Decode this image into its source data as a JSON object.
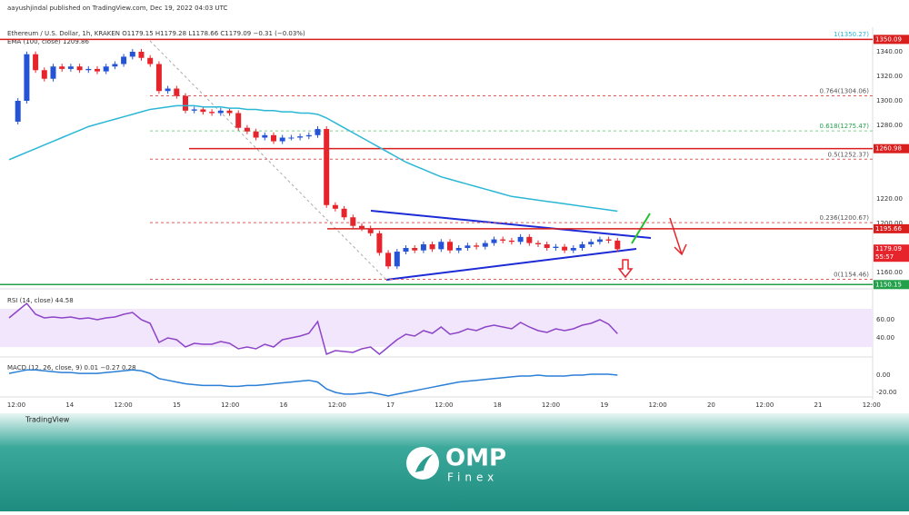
{
  "header": {
    "publisher": "aayushjindal published on TradingView.com, Dec 19, 2022 04:03 UTC"
  },
  "chart": {
    "type": "candlestick",
    "symbol": "Ethereum / U.S. Dollar, 1h, KRAKEN  O1179.15 H1179.28 L1178.66 C1179.09 −0.31 (−0.03%)",
    "ema_label": "EMA (100, close)  1209.86",
    "rsi_label": "RSI (14, close)  44.58",
    "macd_label": "MACD (12, 26, close, 9)  0.01  −0.27  0.28",
    "up_color": "#2453d6",
    "down_color": "#e6242b",
    "ema_color": "#2ab7d6",
    "rsi_color": "#8e44c9",
    "macd_color": "#2a7fd6",
    "closes": [
      1283,
      1300,
      1338,
      1325,
      1318,
      1328,
      1326,
      1328,
      1325,
      1326,
      1324,
      1328,
      1330,
      1336,
      1340,
      1335,
      1330,
      1308,
      1310,
      1304,
      1292,
      1293,
      1291,
      1290,
      1292,
      1290,
      1278,
      1275,
      1270,
      1272,
      1267,
      1270,
      1270,
      1271,
      1272,
      1277,
      1215,
      1212,
      1205,
      1198,
      1196,
      1192,
      1176,
      1165,
      1177,
      1180,
      1178,
      1183,
      1179,
      1185,
      1178,
      1180,
      1182,
      1181,
      1184,
      1187,
      1186,
      1185,
      1189,
      1184,
      1183,
      1180,
      1181,
      1178,
      1180,
      1183,
      1185,
      1187,
      1186,
      1179
    ],
    "ema": [
      1252,
      1255,
      1258,
      1261,
      1264,
      1267,
      1270,
      1273,
      1276,
      1279,
      1281,
      1283,
      1285,
      1287,
      1289,
      1291,
      1293,
      1294,
      1295,
      1296,
      1296,
      1296,
      1295,
      1295,
      1295,
      1294,
      1294,
      1293,
      1293,
      1292,
      1292,
      1291,
      1291,
      1290,
      1290,
      1289,
      1286,
      1282,
      1278,
      1274,
      1270,
      1266,
      1262,
      1258,
      1254,
      1250,
      1247,
      1244,
      1241,
      1238,
      1236,
      1234,
      1232,
      1230,
      1228,
      1226,
      1224,
      1222,
      1221,
      1220,
      1219,
      1218,
      1217,
      1216,
      1215,
      1214,
      1213,
      1212,
      1211,
      1210
    ],
    "rsi": [
      62,
      70,
      78,
      66,
      62,
      63,
      62,
      63,
      61,
      62,
      60,
      62,
      63,
      66,
      68,
      60,
      56,
      35,
      40,
      38,
      30,
      34,
      33,
      33,
      36,
      34,
      28,
      30,
      28,
      33,
      30,
      38,
      40,
      42,
      45,
      58,
      22,
      26,
      25,
      24,
      28,
      30,
      22,
      30,
      38,
      44,
      42,
      48,
      45,
      52,
      44,
      46,
      50,
      48,
      52,
      54,
      52,
      50,
      57,
      52,
      48,
      46,
      50,
      48,
      50,
      54,
      56,
      60,
      55,
      44.58
    ],
    "macd": [
      2,
      4,
      6,
      6,
      5,
      4,
      3,
      3,
      2,
      2,
      2,
      3,
      4,
      5,
      6,
      5,
      2,
      -4,
      -6,
      -8,
      -10,
      -11,
      -12,
      -12,
      -12,
      -13,
      -13,
      -12,
      -12,
      -11,
      -10,
      -9,
      -8,
      -7,
      -6,
      -8,
      -16,
      -20,
      -22,
      -22,
      -21,
      -20,
      -22,
      -24,
      -22,
      -20,
      -18,
      -16,
      -14,
      -12,
      -10,
      -8,
      -7,
      -6,
      -5,
      -4,
      -3,
      -2,
      -1,
      -1,
      0,
      -1,
      -1,
      -1,
      0,
      0,
      1,
      1,
      1,
      0
    ],
    "price_ticks": [
      {
        "value": 1340,
        "label": "1340.00"
      },
      {
        "value": 1320,
        "label": "1320.00"
      },
      {
        "value": 1300,
        "label": "1300.00"
      },
      {
        "value": 1280,
        "label": "1280.00"
      },
      {
        "value": 1220,
        "label": "1220.00"
      },
      {
        "value": 1200,
        "label": "1200.00"
      },
      {
        "value": 1160,
        "label": "1160.00"
      }
    ],
    "rsi_ticks": [
      {
        "value": 60,
        "label": "60.00"
      },
      {
        "value": 40,
        "label": "40.00"
      }
    ],
    "macd_ticks": [
      {
        "value": 0,
        "label": "0.00"
      },
      {
        "value": -20,
        "label": "-20.00"
      }
    ],
    "time_ticks": [
      "12:00",
      "14",
      "12:00",
      "15",
      "12:00",
      "16",
      "12:00",
      "17",
      "12:00",
      "18",
      "12:00",
      "19",
      "12:00",
      "20",
      "12:00",
      "21",
      "12:00"
    ],
    "fib_levels": [
      {
        "value": 1350.27,
        "label": "1(1350.27)"
      },
      {
        "value": 1304.06,
        "label": "0.764(1304.06)"
      },
      {
        "value": 1275.47,
        "label": "0.618(1275.47)"
      },
      {
        "value": 1252.37,
        "label": "0.5(1252.37)"
      },
      {
        "value": 1200.67,
        "label": "0.236(1200.67)"
      },
      {
        "value": 1154.46,
        "label": "0(1154.46)"
      }
    ],
    "levels": [
      {
        "value": 1350.09,
        "label": "1350.09"
      },
      {
        "value": 1260.98,
        "label": "1260.98"
      },
      {
        "value": 1195.66,
        "label": "1195.66"
      }
    ],
    "support": {
      "value": 1150.15,
      "label": "1150.15"
    },
    "current": {
      "value": 1179.09,
      "label": "1179.09",
      "countdown": "55:57"
    }
  },
  "footer": {
    "tradingview": "TradingView",
    "brand": "OMP",
    "brand_sub": "Finex"
  }
}
